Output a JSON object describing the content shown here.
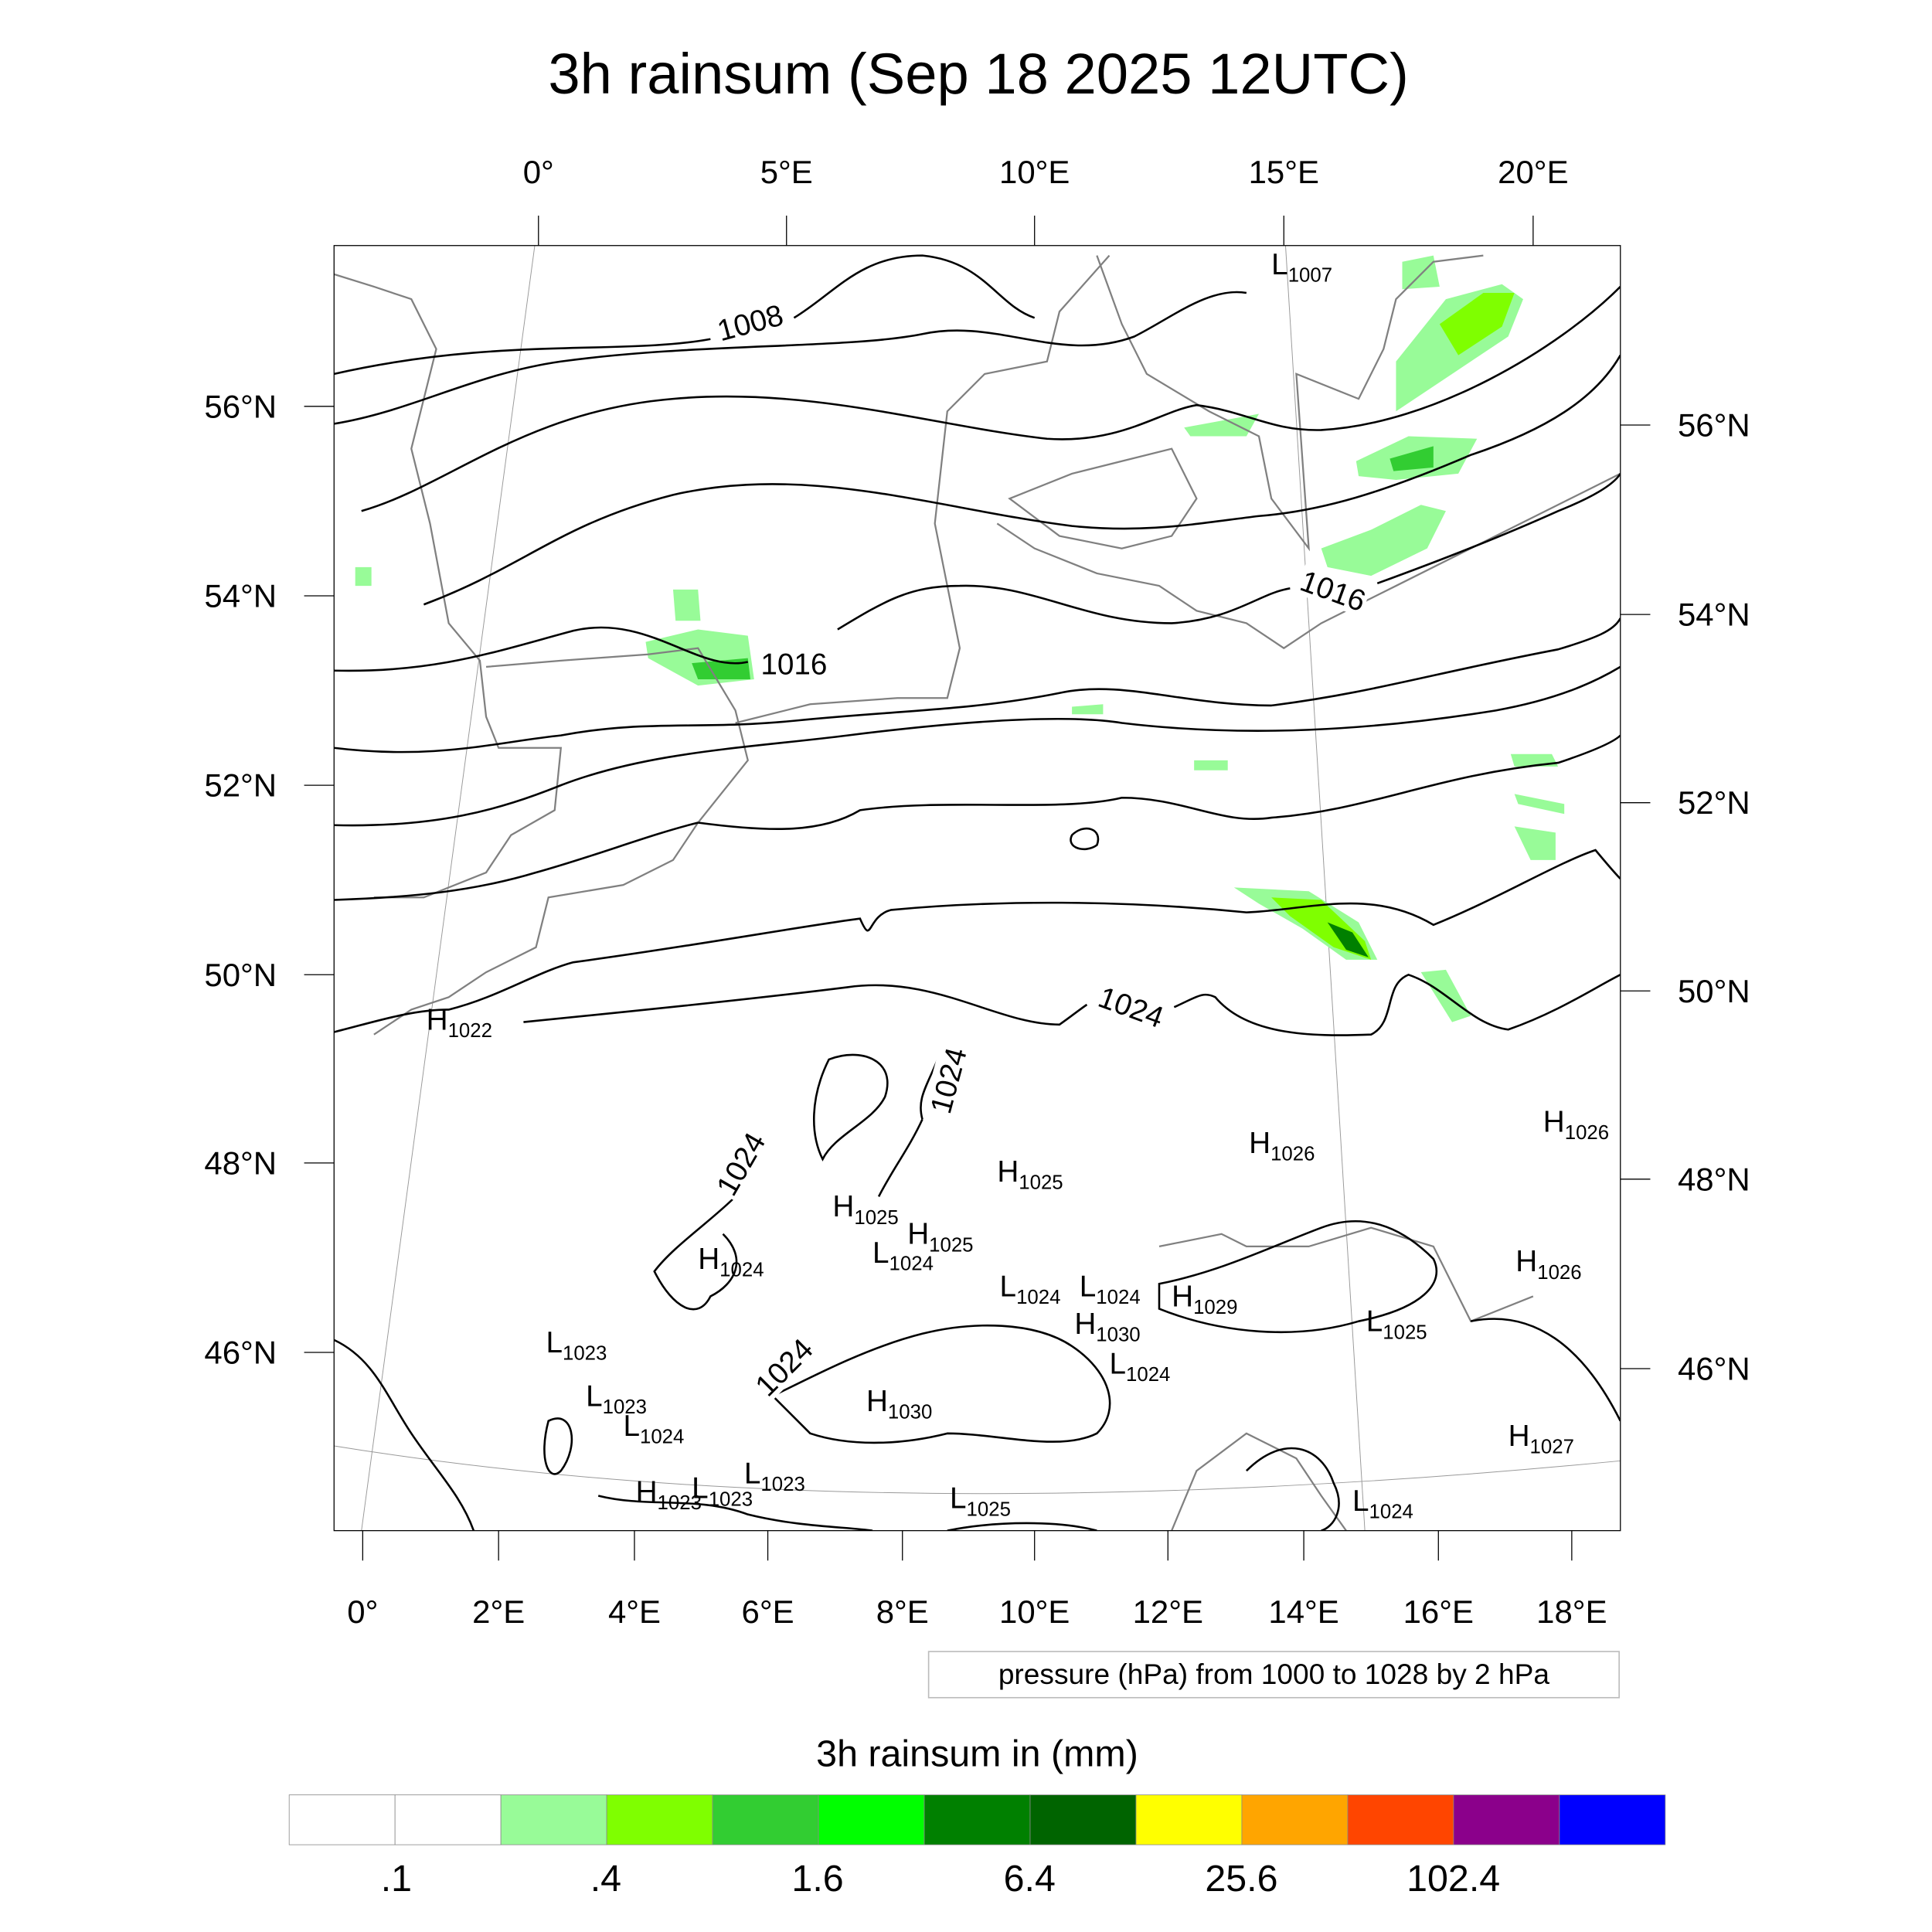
{
  "title": "3h rainsum (Sep 18 2025 12UTC)",
  "top_axis_labels": [
    "0°",
    "5°E",
    "10°E",
    "15°E",
    "20°E"
  ],
  "bottom_axis_labels": [
    "0°",
    "2°E",
    "4°E",
    "6°E",
    "8°E",
    "10°E",
    "12°E",
    "14°E",
    "16°E",
    "18°E"
  ],
  "left_axis_labels": [
    "56°N",
    "54°N",
    "52°N",
    "50°N",
    "48°N",
    "46°N"
  ],
  "right_axis_labels": [
    "56°N",
    "54°N",
    "52°N",
    "50°N",
    "48°N",
    "46°N"
  ],
  "isobar_labels": [
    "1008",
    "1016",
    "1016",
    "1024",
    "1024",
    "1024",
    "1024"
  ],
  "pressure_centers": [
    {
      "type": "L",
      "value": "1007"
    },
    {
      "type": "H",
      "value": "1022"
    },
    {
      "type": "H",
      "value": "1026"
    },
    {
      "type": "H",
      "value": "1026"
    },
    {
      "type": "H",
      "value": "1025"
    },
    {
      "type": "H",
      "value": "1025"
    },
    {
      "type": "H",
      "value": "1025"
    },
    {
      "type": "L",
      "value": "1024"
    },
    {
      "type": "H",
      "value": "1024"
    },
    {
      "type": "L",
      "value": "1024"
    },
    {
      "type": "L",
      "value": "1024"
    },
    {
      "type": "H",
      "value": "1029"
    },
    {
      "type": "H",
      "value": "1030"
    },
    {
      "type": "L",
      "value": "1024"
    },
    {
      "type": "H",
      "value": "1026"
    },
    {
      "type": "L",
      "value": "1025"
    },
    {
      "type": "L",
      "value": "1023"
    },
    {
      "type": "L",
      "value": "1023"
    },
    {
      "type": "L",
      "value": "1024"
    },
    {
      "type": "H",
      "value": "1030"
    },
    {
      "type": "L",
      "value": "1023"
    },
    {
      "type": "H",
      "value": "1023"
    },
    {
      "type": "L",
      "value": "1023"
    },
    {
      "type": "L",
      "value": "1025"
    },
    {
      "type": "H",
      "value": "1027"
    },
    {
      "type": "L",
      "value": "1024"
    }
  ],
  "info_box": "pressure (hPa) from 1000 to 1028 by 2 hPa",
  "colorbar": {
    "title": "3h rainsum in (mm)",
    "colors": [
      "#FFFFFF",
      "#FFFFFF",
      "#98FB98",
      "#7FFF00",
      "#32CD32",
      "#00FF00",
      "#008000",
      "#006400",
      "#FFFF00",
      "#FFA500",
      "#FF4500",
      "#8B008B",
      "#0000FF"
    ],
    "labels": [
      ".1",
      ".4",
      "1.6",
      "6.4",
      "25.6",
      "102.4"
    ]
  }
}
